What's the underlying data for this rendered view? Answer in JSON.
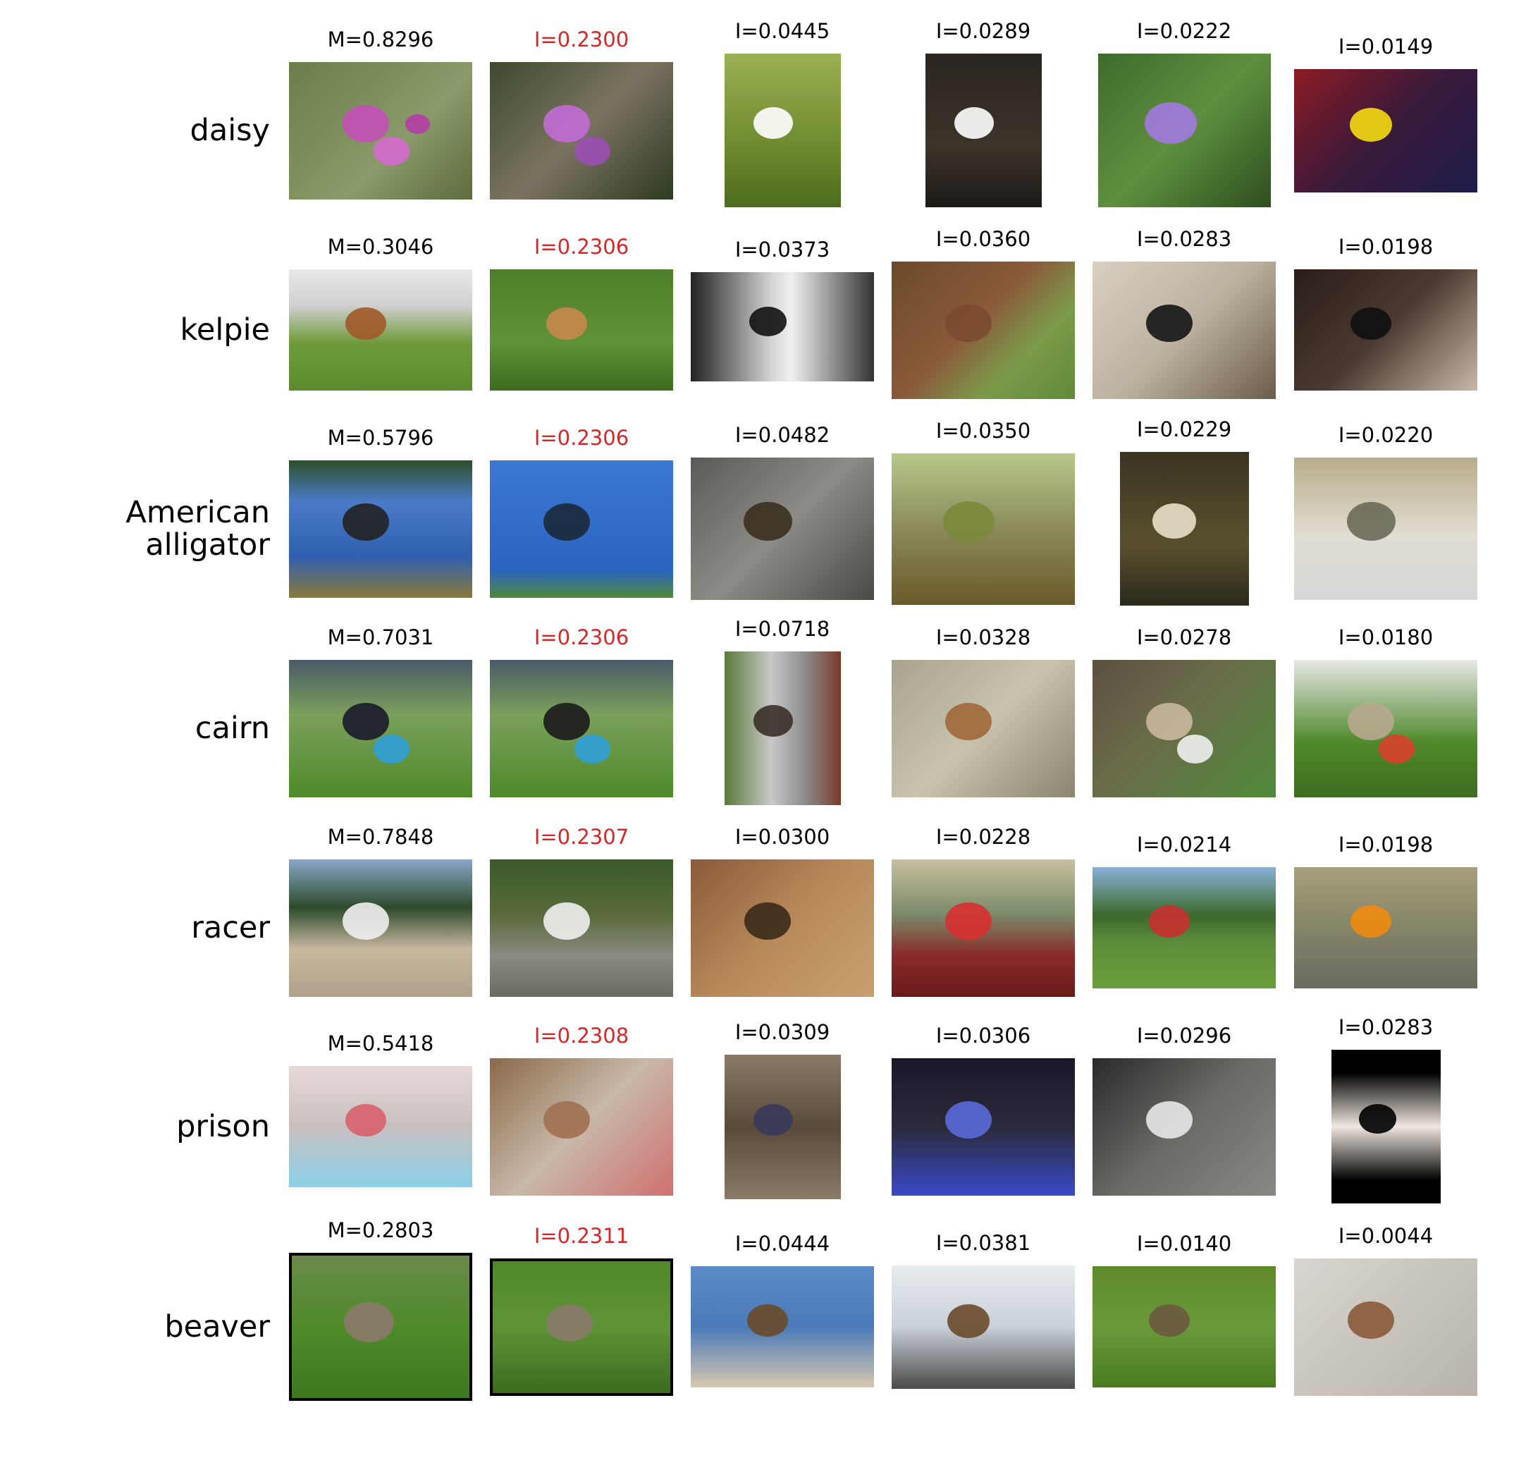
{
  "figure": {
    "rows": [
      {
        "label": "daisy",
        "cells": [
          {
            "score": "M=0.8296",
            "highlight": false,
            "image": "pink-flowers-grass"
          },
          {
            "score": "I=0.2300",
            "highlight": true,
            "image": "purple-daisies"
          },
          {
            "score": "I=0.0445",
            "highlight": false,
            "image": "white-daisy-in-grass"
          },
          {
            "score": "I=0.0289",
            "highlight": false,
            "image": "white-daisy-on-dark-soil"
          },
          {
            "score": "I=0.0222",
            "highlight": false,
            "image": "purple-aster"
          },
          {
            "score": "I=0.0149",
            "highlight": false,
            "image": "yellow-daisy"
          }
        ]
      },
      {
        "label": "kelpie",
        "cells": [
          {
            "score": "M=0.3046",
            "highlight": false,
            "image": "dog-jumping-hurdle-near-cars"
          },
          {
            "score": "I=0.2306",
            "highlight": true,
            "image": "dog-jumping-hurdle-on-grass"
          },
          {
            "score": "I=0.0373",
            "highlight": false,
            "image": "black-white-dog-portrait"
          },
          {
            "score": "I=0.0360",
            "highlight": false,
            "image": "brown-dog-drinking-from-cup"
          },
          {
            "score": "I=0.0283",
            "highlight": false,
            "image": "black-dog-on-sand"
          },
          {
            "score": "I=0.0198",
            "highlight": false,
            "image": "black-dog-lying-down"
          }
        ]
      },
      {
        "label": "American alligator",
        "cells": [
          {
            "score": "M=0.5796",
            "highlight": false,
            "image": "pond-reflection"
          },
          {
            "score": "I=0.2306",
            "highlight": true,
            "image": "alligator-in-blue-water"
          },
          {
            "score": "I=0.0482",
            "highlight": false,
            "image": "alligator-eye-closeup"
          },
          {
            "score": "I=0.0350",
            "highlight": false,
            "image": "alligator-on-log"
          },
          {
            "score": "I=0.0229",
            "highlight": false,
            "image": "alligator-open-jaws"
          },
          {
            "score": "I=0.0220",
            "highlight": false,
            "image": "alligator-on-shore"
          }
        ]
      },
      {
        "label": "cairn",
        "cells": [
          {
            "score": "M=0.7031",
            "highlight": false,
            "image": "puppy-with-blue-bowl"
          },
          {
            "score": "I=0.2306",
            "highlight": true,
            "image": "puppies-at-blue-bowl"
          },
          {
            "score": "I=0.0718",
            "highlight": false,
            "image": "terrier-at-door"
          },
          {
            "score": "I=0.0328",
            "highlight": false,
            "image": "terrier-on-carpet"
          },
          {
            "score": "I=0.0278",
            "highlight": false,
            "image": "two-dogs-on-path"
          },
          {
            "score": "I=0.0180",
            "highlight": false,
            "image": "terrier-in-bath"
          }
        ]
      },
      {
        "label": "racer",
        "cells": [
          {
            "score": "M=0.7848",
            "highlight": false,
            "image": "car-on-dusty-road"
          },
          {
            "score": "I=0.2307",
            "highlight": true,
            "image": "car-on-mountain-road"
          },
          {
            "score": "I=0.0300",
            "highlight": false,
            "image": "desert-hillside"
          },
          {
            "score": "I=0.0228",
            "highlight": false,
            "image": "race-track-grandstand"
          },
          {
            "score": "I=0.0214",
            "highlight": false,
            "image": "cars-on-grass-track"
          },
          {
            "score": "I=0.0198",
            "highlight": false,
            "image": "orange-rally-car"
          }
        ]
      },
      {
        "label": "prison",
        "cells": [
          {
            "score": "M=0.5418",
            "highlight": false,
            "image": "red-bars-visiting-room"
          },
          {
            "score": "I=0.2308",
            "highlight": true,
            "image": "woman-at-red-bars"
          },
          {
            "score": "I=0.0309",
            "highlight": false,
            "image": "people-behind-bars-poster"
          },
          {
            "score": "I=0.0306",
            "highlight": false,
            "image": "dark-cell-blue-floor"
          },
          {
            "score": "I=0.0296",
            "highlight": false,
            "image": "barred-window-stone-wall"
          },
          {
            "score": "I=0.0283",
            "highlight": false,
            "image": "silhouette-at-barred-window"
          }
        ]
      },
      {
        "label": "beaver",
        "cells": [
          {
            "score": "M=0.2803",
            "highlight": false,
            "image": "groundhog-on-grass-framed"
          },
          {
            "score": "I=0.2311",
            "highlight": true,
            "image": "groundhog-on-grass-framed-closeup"
          },
          {
            "score": "I=0.0444",
            "highlight": false,
            "image": "beavers-on-rocks"
          },
          {
            "score": "I=0.0381",
            "highlight": false,
            "image": "muskrat-in-water"
          },
          {
            "score": "I=0.0140",
            "highlight": false,
            "image": "groundhog-in-field"
          },
          {
            "score": "I=0.0044",
            "highlight": false,
            "image": "beaver-swimming"
          }
        ]
      }
    ]
  }
}
